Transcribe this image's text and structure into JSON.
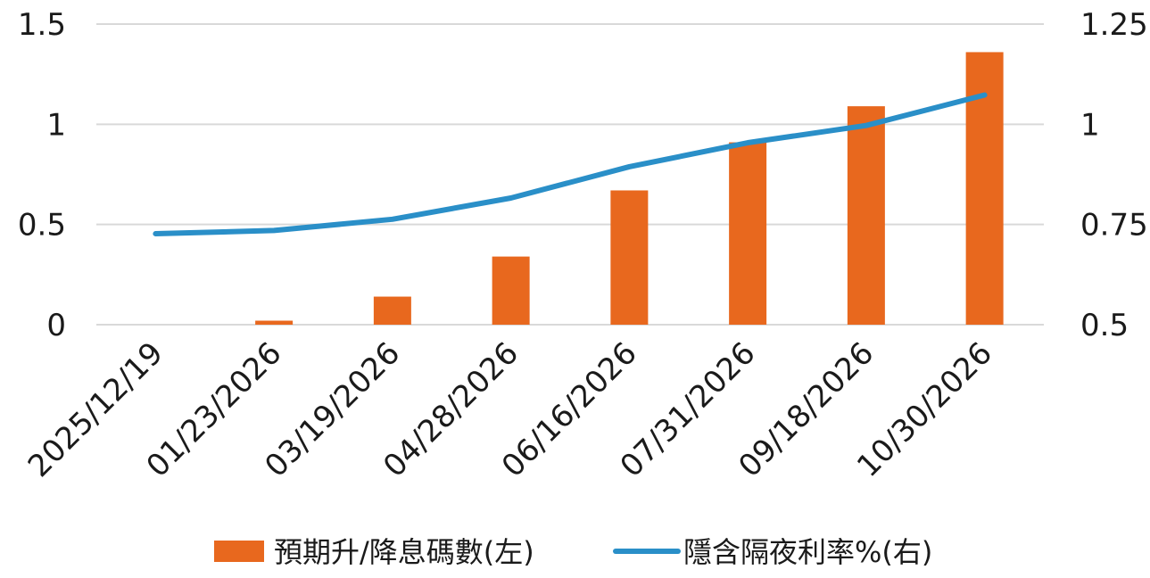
{
  "chart_data": {
    "type": "bar",
    "categories": [
      "2025/12/19",
      "01/23/2026",
      "03/19/2026",
      "04/28/2026",
      "06/16/2026",
      "07/31/2026",
      "09/18/2026",
      "10/30/2026"
    ],
    "series": [
      {
        "name": "預期升/降息碼數(左)",
        "type": "bar",
        "axis": "left",
        "color": "#E8681E",
        "values": [
          0,
          0.02,
          0.14,
          0.34,
          0.67,
          0.91,
          1.09,
          1.36
        ]
      },
      {
        "name": "隱含隔夜利率%(右)",
        "type": "line",
        "axis": "right",
        "color": "#2A8FC8",
        "values": [
          0.727,
          0.735,
          0.763,
          0.816,
          0.894,
          0.954,
          0.997,
          1.073
        ]
      }
    ],
    "left_axis": {
      "ylim": [
        0,
        1.5
      ],
      "ticks": [
        0,
        0.5,
        1,
        1.5
      ],
      "tick_labels": [
        "0",
        "0.5",
        "1",
        "1.5"
      ]
    },
    "right_axis": {
      "ylim": [
        0.5,
        1.25
      ],
      "ticks": [
        0.5,
        0.75,
        1,
        1.25
      ],
      "tick_labels": [
        "0.5",
        "0.75",
        "1",
        "1.25"
      ]
    },
    "grid": true,
    "grid_color": "#d9d9d9",
    "legend_position": "bottom",
    "title": "",
    "xlabel": "",
    "ylabel": ""
  }
}
